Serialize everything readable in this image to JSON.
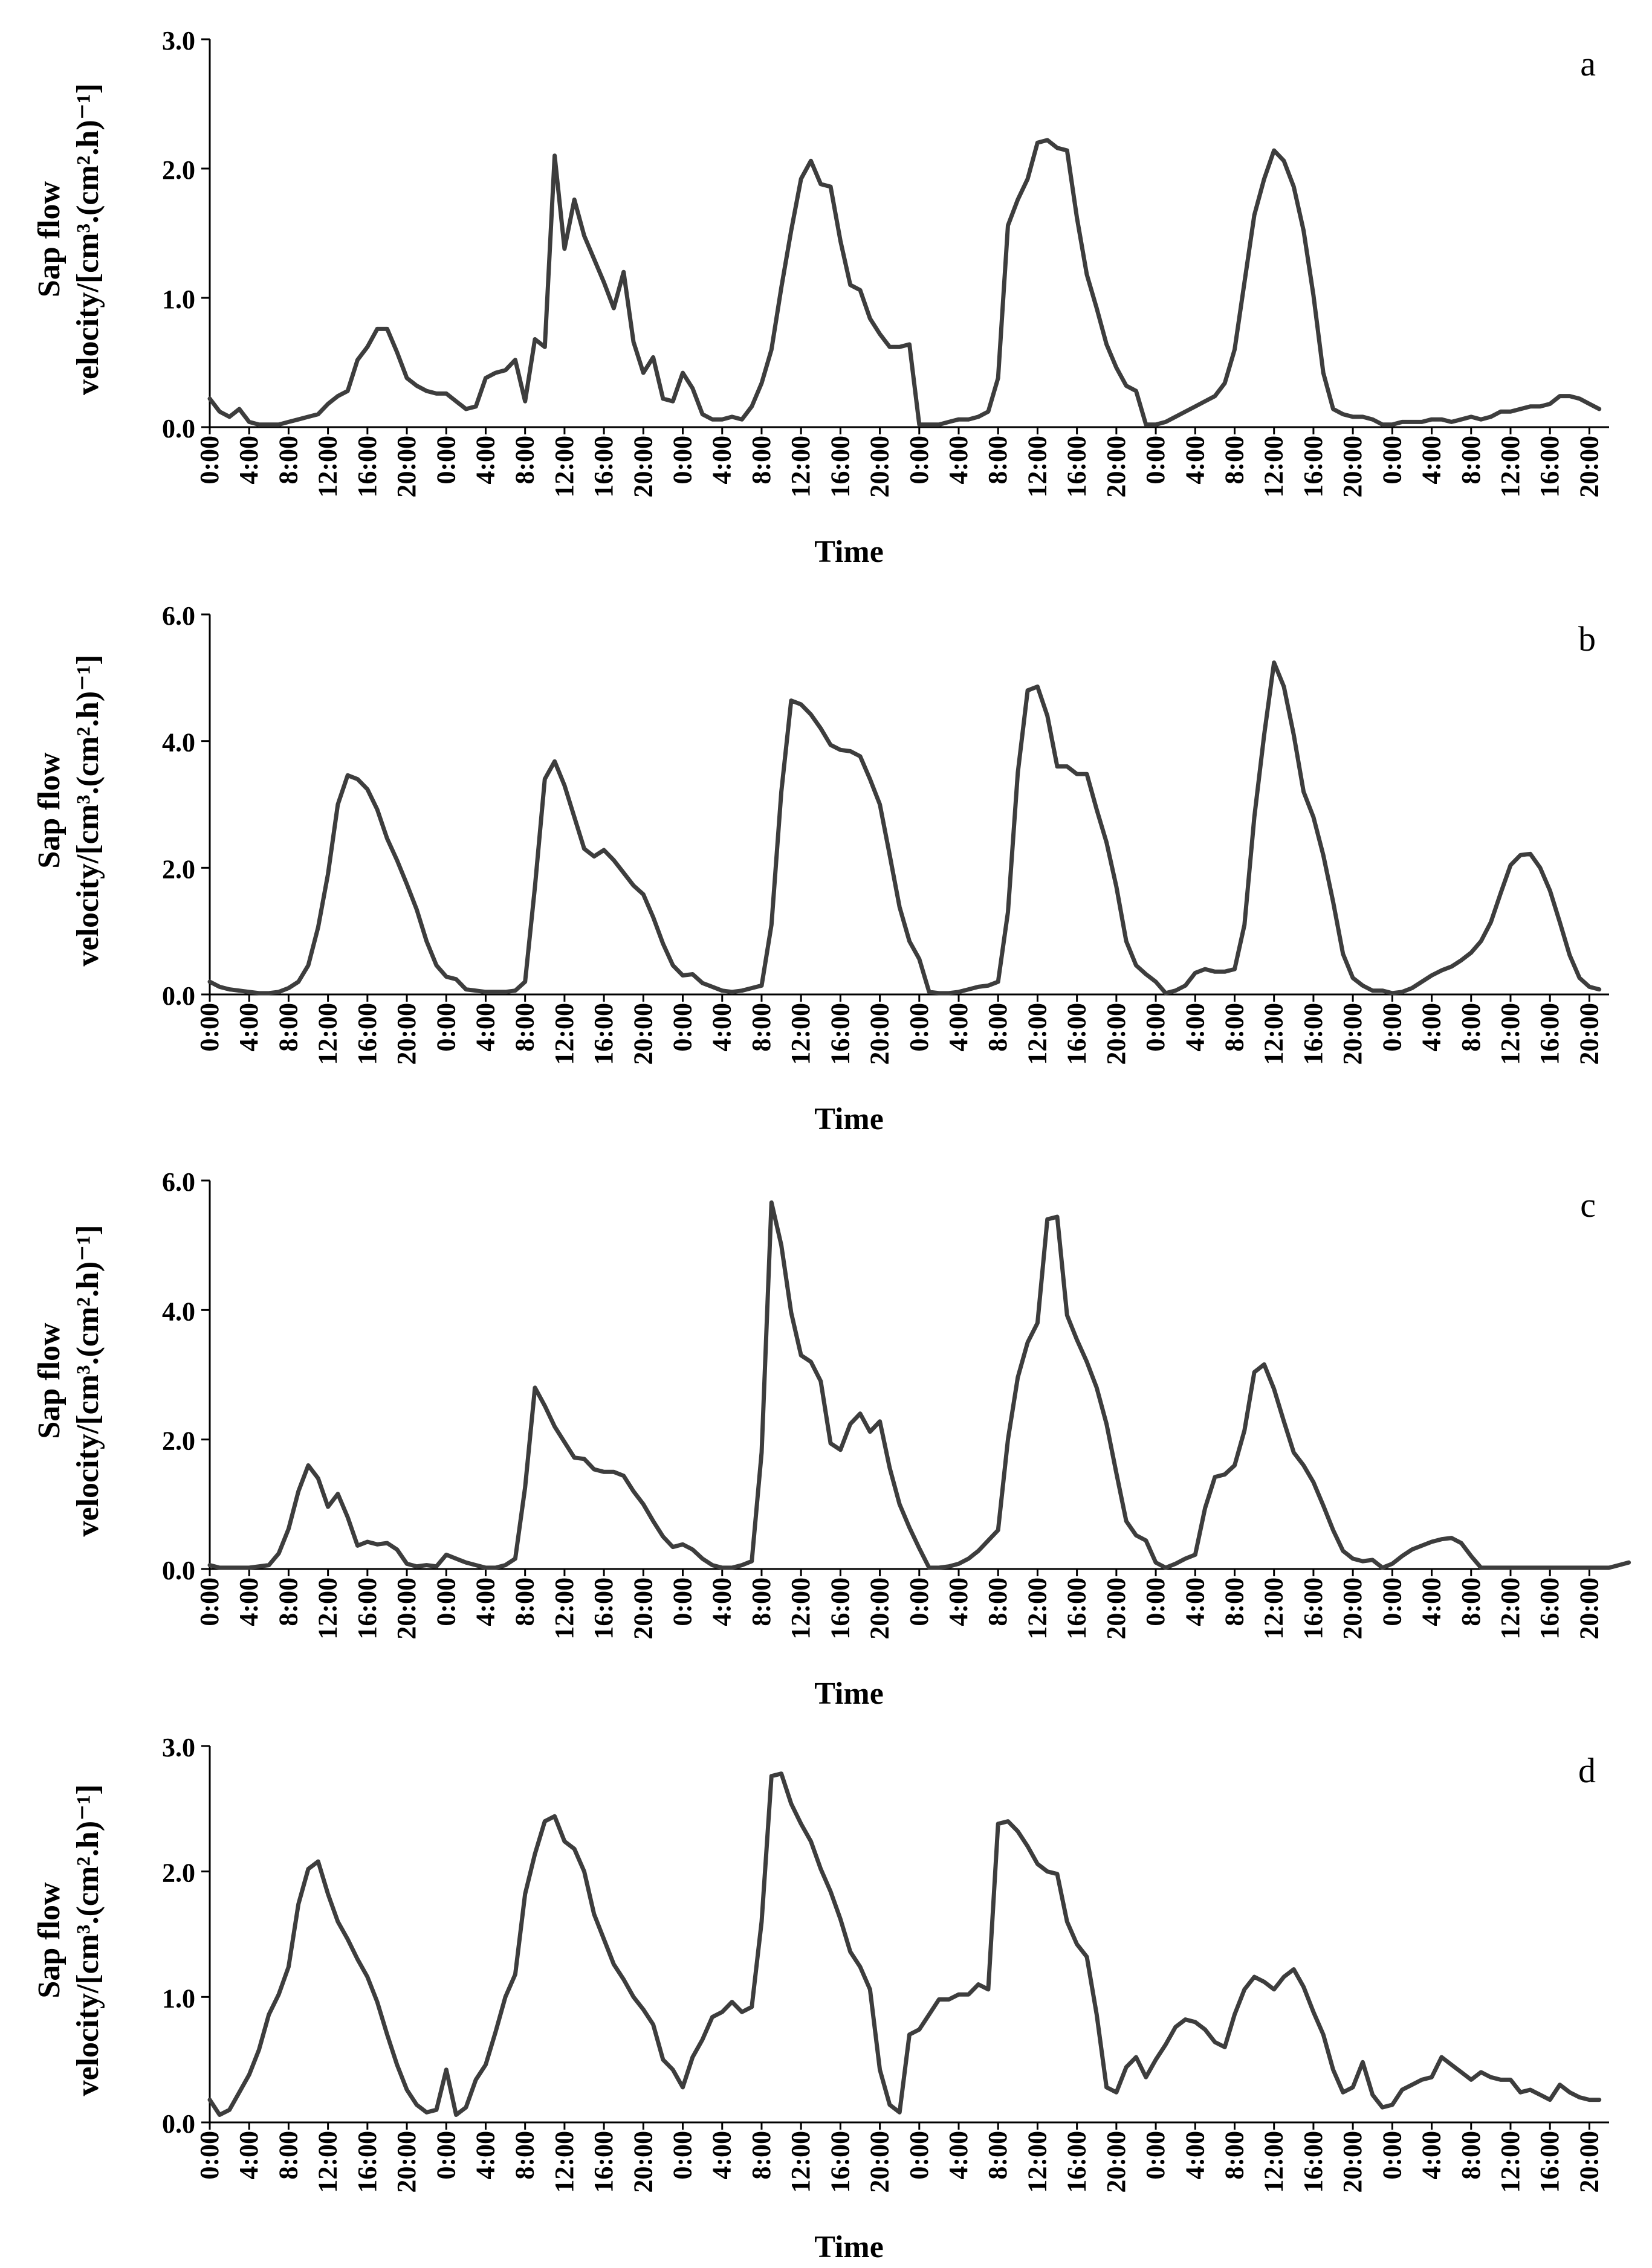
{
  "colors": {
    "line": "#3d3d3d",
    "axis": "#000000"
  },
  "x_tick_labels": [
    "0:00",
    "4:00",
    "8:00",
    "12:00",
    "16:00",
    "20:00",
    "0:00",
    "4:00",
    "8:00",
    "12:00",
    "16:00",
    "20:00",
    "0:00",
    "4:00",
    "8:00",
    "12:00",
    "16:00",
    "20:00",
    "0:00",
    "4:00",
    "8:00",
    "12:00",
    "16:00",
    "20:00",
    "0:00",
    "4:00",
    "8:00",
    "12:00",
    "16:00",
    "20:00",
    "0:00",
    "4:00",
    "8:00",
    "12:00",
    "16:00",
    "20:00"
  ],
  "chart_data": [
    {
      "type": "line",
      "panel_label": "a",
      "xlabel": "Time",
      "ylabel_line1": "Sap flow",
      "ylabel_line2": "velocity/[cm³.(cm².h)⁻¹]",
      "ylim": [
        0,
        3.0
      ],
      "yticks": [
        "0.0",
        "1.0",
        "2.0",
        "3.0"
      ],
      "x_range": [
        0,
        142
      ],
      "series": [
        {
          "name": "a",
          "values": [
            0.22,
            0.12,
            0.08,
            0.14,
            0.04,
            0.02,
            0.02,
            0.02,
            0.04,
            0.06,
            0.08,
            0.1,
            0.18,
            0.24,
            0.28,
            0.52,
            0.62,
            0.76,
            0.76,
            0.58,
            0.38,
            0.32,
            0.28,
            0.26,
            0.26,
            0.2,
            0.14,
            0.16,
            0.38,
            0.42,
            0.44,
            0.52,
            0.2,
            0.68,
            0.62,
            2.1,
            1.38,
            1.76,
            1.48,
            1.3,
            1.12,
            0.92,
            1.2,
            0.66,
            0.42,
            0.54,
            0.22,
            0.2,
            0.42,
            0.3,
            0.1,
            0.06,
            0.06,
            0.08,
            0.06,
            0.16,
            0.34,
            0.6,
            1.08,
            1.52,
            1.92,
            2.06,
            1.88,
            1.86,
            1.44,
            1.1,
            1.06,
            0.84,
            0.72,
            0.62,
            0.62,
            0.64,
            0.02,
            0.02,
            0.02,
            0.04,
            0.06,
            0.06,
            0.08,
            0.12,
            0.38,
            1.56,
            1.76,
            1.92,
            2.2,
            2.22,
            2.16,
            2.14,
            1.62,
            1.18,
            0.92,
            0.64,
            0.46,
            0.32,
            0.28,
            0.02,
            0.02,
            0.04,
            0.08,
            0.12,
            0.16,
            0.2,
            0.24,
            0.34,
            0.6,
            1.12,
            1.64,
            1.92,
            2.14,
            2.06,
            1.86,
            1.52,
            1.02,
            0.42,
            0.14,
            0.1,
            0.08,
            0.08,
            0.06,
            0.02,
            0.02,
            0.04,
            0.04,
            0.04,
            0.06,
            0.06,
            0.04,
            0.06,
            0.08,
            0.06,
            0.08,
            0.12,
            0.12,
            0.14,
            0.16,
            0.16,
            0.18,
            0.24,
            0.24,
            0.22,
            0.18,
            0.14
          ]
        }
      ]
    },
    {
      "type": "line",
      "panel_label": "b",
      "xlabel": "Time",
      "ylabel_line1": "Sap flow",
      "ylabel_line2": "velocity/[cm³.(cm².h)⁻¹]",
      "ylim": [
        0,
        6.0
      ],
      "yticks": [
        "0.0",
        "2.0",
        "4.0",
        "6.0"
      ],
      "x_range": [
        0,
        142
      ],
      "series": [
        {
          "name": "b",
          "values": [
            0.2,
            0.12,
            0.08,
            0.06,
            0.04,
            0.02,
            0.02,
            0.04,
            0.1,
            0.2,
            0.46,
            1.06,
            1.9,
            3.0,
            3.46,
            3.4,
            3.24,
            2.92,
            2.46,
            2.12,
            1.74,
            1.34,
            0.84,
            0.46,
            0.28,
            0.24,
            0.08,
            0.06,
            0.04,
            0.04,
            0.04,
            0.06,
            0.2,
            1.7,
            3.4,
            3.68,
            3.3,
            2.8,
            2.3,
            2.18,
            2.28,
            2.12,
            1.92,
            1.72,
            1.58,
            1.22,
            0.8,
            0.46,
            0.3,
            0.32,
            0.18,
            0.12,
            0.06,
            0.04,
            0.06,
            0.1,
            0.14,
            1.1,
            3.2,
            4.64,
            4.58,
            4.42,
            4.2,
            3.94,
            3.86,
            3.84,
            3.76,
            3.4,
            3.0,
            2.2,
            1.38,
            0.84,
            0.56,
            0.04,
            0.02,
            0.02,
            0.04,
            0.08,
            0.12,
            0.14,
            0.2,
            1.3,
            3.5,
            4.8,
            4.86,
            4.4,
            3.6,
            3.6,
            3.48,
            3.48,
            2.92,
            2.4,
            1.7,
            0.84,
            0.46,
            0.32,
            0.2,
            0.02,
            0.06,
            0.14,
            0.34,
            0.4,
            0.36,
            0.36,
            0.4,
            1.1,
            2.8,
            4.1,
            5.24,
            4.86,
            4.1,
            3.2,
            2.8,
            2.2,
            1.46,
            0.64,
            0.26,
            0.14,
            0.06,
            0.06,
            0.02,
            0.04,
            0.1,
            0.2,
            0.3,
            0.38,
            0.44,
            0.54,
            0.66,
            0.84,
            1.14,
            1.6,
            2.04,
            2.2,
            2.22,
            2.0,
            1.64,
            1.14,
            0.62,
            0.26,
            0.12,
            0.08
          ]
        }
      ]
    },
    {
      "type": "line",
      "panel_label": "c",
      "xlabel": "Time",
      "ylabel_line1": "Sap flow",
      "ylabel_line2": "velocity/[cm³.(cm².h)⁻¹]",
      "ylim": [
        0,
        6.0
      ],
      "yticks": [
        "0.0",
        "2.0",
        "4.0",
        "6.0"
      ],
      "x_range": [
        0,
        142
      ],
      "series": [
        {
          "name": "c",
          "values": [
            0.06,
            0.02,
            0.02,
            0.02,
            0.02,
            0.04,
            0.06,
            0.24,
            0.62,
            1.2,
            1.6,
            1.4,
            0.96,
            1.16,
            0.8,
            0.36,
            0.42,
            0.38,
            0.4,
            0.3,
            0.08,
            0.04,
            0.06,
            0.04,
            0.22,
            0.16,
            0.1,
            0.06,
            0.02,
            0.02,
            0.06,
            0.16,
            1.26,
            2.8,
            2.52,
            2.2,
            1.96,
            1.72,
            1.7,
            1.54,
            1.5,
            1.5,
            1.44,
            1.2,
            1.0,
            0.74,
            0.5,
            0.34,
            0.38,
            0.3,
            0.16,
            0.06,
            0.02,
            0.02,
            0.06,
            0.12,
            1.8,
            5.66,
            5.0,
            3.96,
            3.3,
            3.2,
            2.9,
            1.94,
            1.84,
            2.24,
            2.4,
            2.12,
            2.28,
            1.56,
            1.0,
            0.64,
            0.32,
            0.02,
            0.02,
            0.04,
            0.08,
            0.16,
            0.28,
            0.44,
            0.6,
            2.0,
            2.96,
            3.5,
            3.8,
            5.4,
            5.44,
            3.92,
            3.54,
            3.2,
            2.8,
            2.24,
            1.48,
            0.74,
            0.52,
            0.44,
            0.1,
            0.02,
            0.08,
            0.16,
            0.22,
            0.94,
            1.42,
            1.46,
            1.6,
            2.14,
            3.04,
            3.16,
            2.78,
            2.28,
            1.8,
            1.6,
            1.34,
            0.98,
            0.6,
            0.28,
            0.16,
            0.12,
            0.14,
            0.02,
            0.08,
            0.2,
            0.3,
            0.36,
            0.42,
            0.46,
            0.48,
            0.4,
            0.2,
            0.02,
            0.02,
            0.02,
            0.02,
            0.02,
            0.02,
            0.02,
            0.02,
            0.02,
            0.02,
            0.02,
            0.02,
            0.02,
            0.02,
            0.06,
            0.1
          ]
        }
      ]
    },
    {
      "type": "line",
      "panel_label": "d",
      "xlabel": "Time",
      "ylabel_line1": "Sap flow",
      "ylabel_line2": "velocity/[cm³.(cm².h)⁻¹]",
      "ylim": [
        0,
        3.0
      ],
      "yticks": [
        "0.0",
        "1.0",
        "2.0",
        "3.0"
      ],
      "x_range": [
        0,
        142
      ],
      "series": [
        {
          "name": "d",
          "values": [
            0.18,
            0.06,
            0.1,
            0.24,
            0.38,
            0.58,
            0.86,
            1.02,
            1.24,
            1.74,
            2.02,
            2.08,
            1.82,
            1.6,
            1.46,
            1.3,
            1.16,
            0.96,
            0.7,
            0.46,
            0.26,
            0.14,
            0.08,
            0.1,
            0.42,
            0.06,
            0.12,
            0.34,
            0.46,
            0.72,
            1.0,
            1.18,
            1.82,
            2.14,
            2.4,
            2.44,
            2.24,
            2.18,
            2.0,
            1.66,
            1.46,
            1.26,
            1.14,
            1.0,
            0.9,
            0.78,
            0.5,
            0.42,
            0.28,
            0.52,
            0.66,
            0.84,
            0.88,
            0.96,
            0.88,
            0.92,
            1.6,
            2.76,
            2.78,
            2.54,
            2.38,
            2.24,
            2.02,
            1.84,
            1.62,
            1.36,
            1.24,
            1.06,
            0.42,
            0.14,
            0.08,
            0.7,
            0.74,
            0.86,
            0.98,
            0.98,
            1.02,
            1.02,
            1.1,
            1.06,
            2.38,
            2.4,
            2.32,
            2.2,
            2.06,
            2.0,
            1.98,
            1.6,
            1.42,
            1.32,
            0.86,
            0.28,
            0.24,
            0.44,
            0.52,
            0.36,
            0.5,
            0.62,
            0.76,
            0.82,
            0.8,
            0.74,
            0.64,
            0.6,
            0.86,
            1.06,
            1.16,
            1.12,
            1.06,
            1.16,
            1.22,
            1.08,
            0.88,
            0.7,
            0.42,
            0.24,
            0.28,
            0.48,
            0.22,
            0.12,
            0.14,
            0.26,
            0.3,
            0.34,
            0.36,
            0.52,
            0.46,
            0.4,
            0.34,
            0.4,
            0.36,
            0.34,
            0.34,
            0.24,
            0.26,
            0.22,
            0.18,
            0.3,
            0.24,
            0.2,
            0.18,
            0.18
          ]
        }
      ]
    }
  ]
}
